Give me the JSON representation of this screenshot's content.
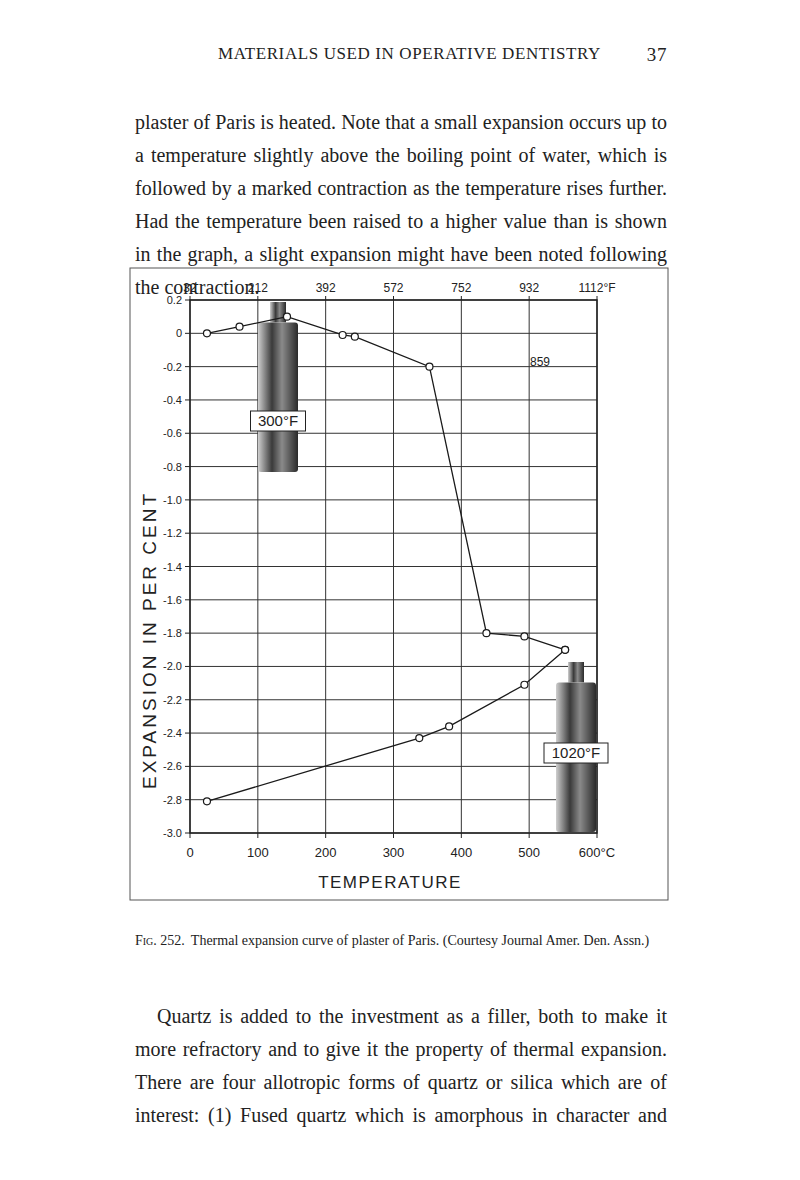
{
  "header": {
    "title": "MATERIALS USED IN OPERATIVE DENTISTRY",
    "page_number": "37"
  },
  "paragraphs": [
    "plaster of Paris is heated. Note that a small expansion occurs up to a temperature slightly above the boiling point of water, which is followed by a marked contraction as the temperature rises further. Had the temperature been raised to a higher value than is shown in the graph, a slight expansion might have been noted following the contraction.",
    "Quartz is added to the investment as a filler, both to make it more refractory and to give it the property of thermal expansion. There are four allotropic forms of quartz or silica which are of interest: (1) Fused quartz which is amorphous in character and"
  ],
  "figure": {
    "caption_label": "Fig. 252.",
    "caption": "Thermal expansion curve of plaster of Paris.  (Courtesy Journal Amer. Den. Assn.)"
  },
  "chart_data": {
    "type": "line",
    "x_label": "TEMPERATURE",
    "y_label": "EXPANSION IN PER CENT",
    "xlim": [
      0,
      600
    ],
    "xticks": [
      0,
      100,
      200,
      300,
      400,
      500,
      {
        "value": 600,
        "label": "600°C"
      }
    ],
    "x2lim": [
      32,
      1112
    ],
    "x2ticks": [
      32,
      212,
      392,
      572,
      752,
      932,
      {
        "value": 1112,
        "label": "1112°F"
      }
    ],
    "ylim": [
      -3,
      0.2
    ],
    "yticks": [
      0.2,
      0,
      -0.2,
      -0.4,
      -0.6,
      -0.8,
      {
        "value": -1,
        "label": "-1.0"
      },
      -1.2,
      -1.4,
      -1.6,
      -1.8,
      {
        "value": -2,
        "label": "-2.0"
      },
      -2.2,
      -2.4,
      -2.6,
      -2.8,
      {
        "value": -3,
        "label": "-3.0"
      }
    ],
    "grid": true,
    "marker": "circle",
    "series": [
      {
        "color": "#1a1a1a",
        "x": [
          25,
          73,
          143,
          225,
          243,
          353,
          437,
          493,
          553
        ],
        "values": [
          0,
          0.04,
          0.1,
          -0.01,
          -0.02,
          -0.2,
          -1.8,
          -1.82,
          -1.9
        ]
      },
      {
        "color": "#1a1a1a",
        "x": [
          25,
          338,
          382,
          493,
          553
        ],
        "values": [
          -2.81,
          -2.43,
          -2.36,
          -2.11,
          -1.9
        ]
      }
    ],
    "annotations": [
      "300°F",
      "1020°F",
      "859"
    ]
  }
}
